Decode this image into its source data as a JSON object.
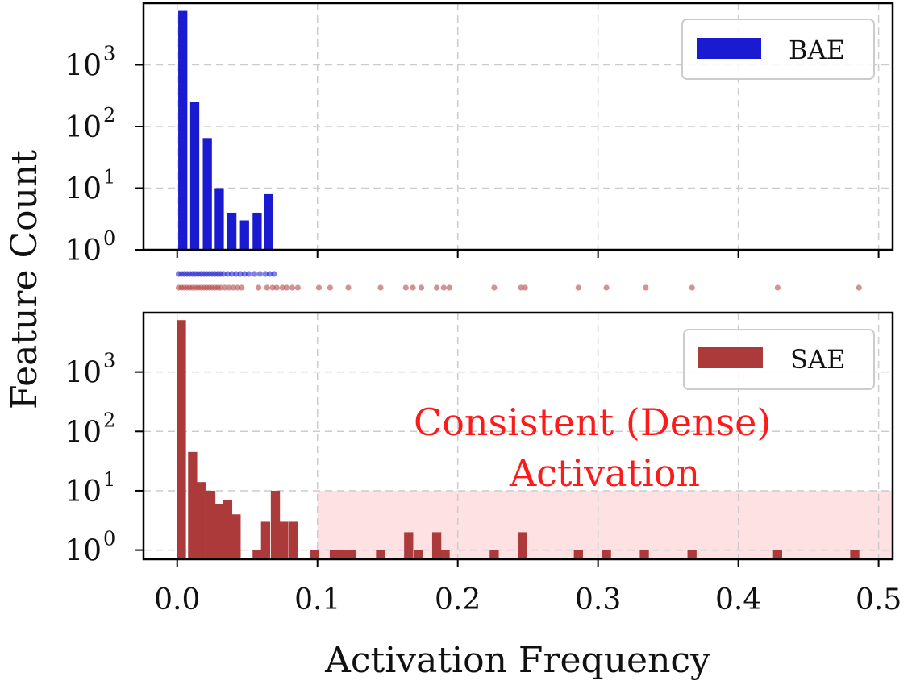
{
  "chart_data": {
    "type": "bar",
    "xlabel": "Activation Frequency",
    "ylabel": "Feature Count",
    "xlim": [
      -0.024,
      0.51
    ],
    "x_ticks": [
      "0.0",
      "0.1",
      "0.2",
      "0.3",
      "0.4",
      "0.5"
    ],
    "y_scale": "log",
    "y_tick_base": "10",
    "y_tick_exponents": [
      "0",
      "1",
      "2",
      "3"
    ],
    "grid": true,
    "bin_width": 0.0065,
    "panels": [
      {
        "name": "BAE",
        "color": "#1a1ad0",
        "legend_position": "top-right",
        "ylim": [
          1,
          10000
        ],
        "bins": [
          {
            "x": 0.004,
            "count": 7500
          },
          {
            "x": 0.0125,
            "count": 250
          },
          {
            "x": 0.0215,
            "count": 65
          },
          {
            "x": 0.03,
            "count": 10
          },
          {
            "x": 0.039,
            "count": 4
          },
          {
            "x": 0.048,
            "count": 3
          },
          {
            "x": 0.057,
            "count": 4
          },
          {
            "x": 0.065,
            "count": 8
          }
        ]
      },
      {
        "name": "SAE",
        "color": "#ad3a3a",
        "legend_position": "top-right",
        "ylim": [
          0.7,
          10000
        ],
        "highlight_region": {
          "x": [
            0.1,
            0.51
          ],
          "y": [
            0.7,
            10
          ],
          "color": "#fde1e3"
        },
        "annotation": {
          "lines": [
            "Consistent (Dense)",
            "Activation"
          ],
          "color": "#ff1a1a"
        },
        "bins": [
          {
            "x": 0.003,
            "count": 7500
          },
          {
            "x": 0.011,
            "count": 45
          },
          {
            "x": 0.017,
            "count": 14
          },
          {
            "x": 0.024,
            "count": 10
          },
          {
            "x": 0.03,
            "count": 6
          },
          {
            "x": 0.036,
            "count": 7
          },
          {
            "x": 0.042,
            "count": 4
          },
          {
            "x": 0.057,
            "count": 1
          },
          {
            "x": 0.063,
            "count": 3
          },
          {
            "x": 0.07,
            "count": 10
          },
          {
            "x": 0.076,
            "count": 3
          },
          {
            "x": 0.083,
            "count": 3
          },
          {
            "x": 0.098,
            "count": 1
          },
          {
            "x": 0.112,
            "count": 1
          },
          {
            "x": 0.118,
            "count": 1
          },
          {
            "x": 0.124,
            "count": 1
          },
          {
            "x": 0.145,
            "count": 1
          },
          {
            "x": 0.165,
            "count": 2
          },
          {
            "x": 0.172,
            "count": 1
          },
          {
            "x": 0.185,
            "count": 2
          },
          {
            "x": 0.191,
            "count": 1
          },
          {
            "x": 0.226,
            "count": 1
          },
          {
            "x": 0.246,
            "count": 2
          },
          {
            "x": 0.286,
            "count": 1
          },
          {
            "x": 0.306,
            "count": 1
          },
          {
            "x": 0.333,
            "count": 1
          },
          {
            "x": 0.367,
            "count": 1
          },
          {
            "x": 0.428,
            "count": 1
          },
          {
            "x": 0.483,
            "count": 1
          }
        ]
      }
    ],
    "rug": [
      {
        "series": "BAE",
        "color": "#1a1ad0",
        "points": [
          0.001,
          0.003,
          0.005,
          0.007,
          0.009,
          0.011,
          0.013,
          0.015,
          0.017,
          0.019,
          0.021,
          0.023,
          0.025,
          0.027,
          0.029,
          0.031,
          0.033,
          0.036,
          0.039,
          0.042,
          0.045,
          0.048,
          0.051,
          0.055,
          0.059,
          0.063,
          0.066,
          0.069
        ]
      },
      {
        "series": "SAE",
        "color": "#ad3a3a",
        "points": [
          0.001,
          0.003,
          0.005,
          0.007,
          0.009,
          0.011,
          0.013,
          0.015,
          0.017,
          0.019,
          0.021,
          0.023,
          0.025,
          0.027,
          0.029,
          0.031,
          0.034,
          0.037,
          0.04,
          0.043,
          0.046,
          0.058,
          0.064,
          0.068,
          0.071,
          0.075,
          0.078,
          0.082,
          0.086,
          0.101,
          0.109,
          0.122,
          0.145,
          0.163,
          0.168,
          0.174,
          0.185,
          0.19,
          0.194,
          0.226,
          0.245,
          0.248,
          0.286,
          0.306,
          0.334,
          0.367,
          0.428,
          0.486
        ]
      }
    ]
  }
}
